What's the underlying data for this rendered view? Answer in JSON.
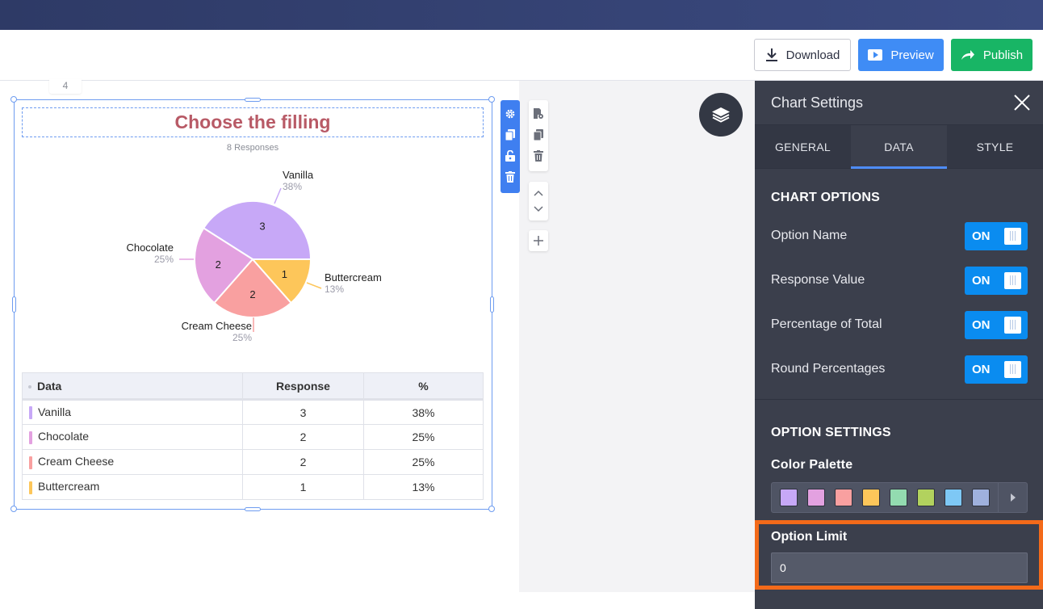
{
  "toolbar": {
    "download_label": "Download",
    "preview_label": "Preview",
    "publish_label": "Publish"
  },
  "page_number": "4",
  "chart": {
    "title": "Choose the filling",
    "responses": "8 Responses"
  },
  "chart_data": {
    "type": "pie",
    "categories": [
      "Vanilla",
      "Chocolate",
      "Cream Cheese",
      "Buttercream"
    ],
    "values": [
      3,
      2,
      2,
      1
    ],
    "percentages": [
      "38%",
      "25%",
      "25%",
      "13%"
    ],
    "colors": [
      "#c7a8f7",
      "#e3a1e0",
      "#f9a0a0",
      "#fdc65a"
    ],
    "title": "Choose the filling"
  },
  "table": {
    "headers": [
      "Data",
      "Response",
      "%"
    ],
    "rows": [
      {
        "name": "Vanilla",
        "response": "3",
        "percent": "38%",
        "color": "#c7a8f7"
      },
      {
        "name": "Chocolate",
        "response": "2",
        "percent": "25%",
        "color": "#e3a1e0"
      },
      {
        "name": "Cream Cheese",
        "response": "2",
        "percent": "25%",
        "color": "#f9a0a0"
      },
      {
        "name": "Buttercream",
        "response": "1",
        "percent": "13%",
        "color": "#fdc65a"
      }
    ]
  },
  "panel": {
    "title": "Chart Settings",
    "tabs": [
      "GENERAL",
      "DATA",
      "STYLE"
    ],
    "active_tab": "DATA",
    "chart_options_title": "CHART OPTIONS",
    "options": [
      {
        "label": "Option Name",
        "state": "ON"
      },
      {
        "label": "Response Value",
        "state": "ON"
      },
      {
        "label": "Percentage of Total",
        "state": "ON"
      },
      {
        "label": "Round Percentages",
        "state": "ON"
      }
    ],
    "option_settings_title": "OPTION SETTINGS",
    "color_palette_label": "Color Palette",
    "palette": [
      "#c7a8f7",
      "#e3a1e0",
      "#f9a0a0",
      "#fdc65a",
      "#93dbb0",
      "#b2d25e",
      "#7ec8f5",
      "#9fb1dd"
    ],
    "option_limit_label": "Option Limit",
    "option_limit_value": "0"
  },
  "accents": {
    "primary": "#3f8cf5",
    "publish": "#18b565",
    "toggle": "#0a8cf0",
    "highlight": "#f36a1a",
    "title": "#b85a66"
  }
}
